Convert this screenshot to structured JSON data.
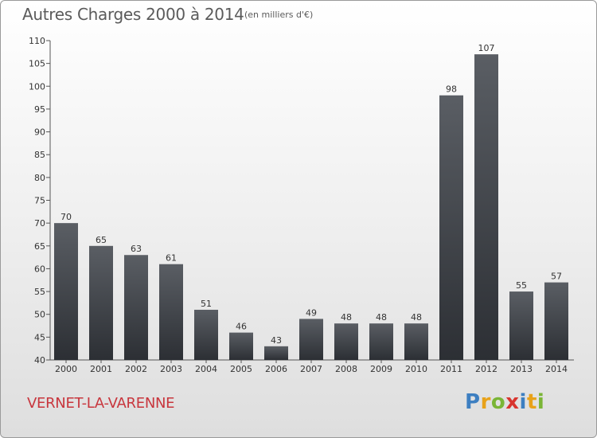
{
  "header": {
    "title": "Autres Charges 2000 à 2014",
    "unit": "(en milliers d'€)"
  },
  "footer": {
    "commune": "VERNET-LA-VARENNE",
    "logo": "Proxiti"
  },
  "colors": {
    "bar_top": "#5a5e64",
    "bar_bottom": "#2c2f34",
    "commune_text": "#c8363d",
    "axis": "#555555"
  },
  "chart_data": {
    "type": "bar",
    "title": "Autres Charges 2000 à 2014",
    "subtitle": "(en milliers d'€)",
    "categories": [
      "2000",
      "2001",
      "2002",
      "2003",
      "2004",
      "2005",
      "2006",
      "2007",
      "2008",
      "2009",
      "2010",
      "2011",
      "2012",
      "2013",
      "2014"
    ],
    "values": [
      70,
      65,
      63,
      61,
      51,
      46,
      43,
      49,
      48,
      48,
      48,
      98,
      107,
      55,
      57
    ],
    "ylim": [
      40,
      110
    ],
    "yticks": [
      40,
      45,
      50,
      55,
      60,
      65,
      70,
      75,
      80,
      85,
      90,
      95,
      100,
      105,
      110
    ],
    "grid": false,
    "legend": "none",
    "data_labels": true
  }
}
